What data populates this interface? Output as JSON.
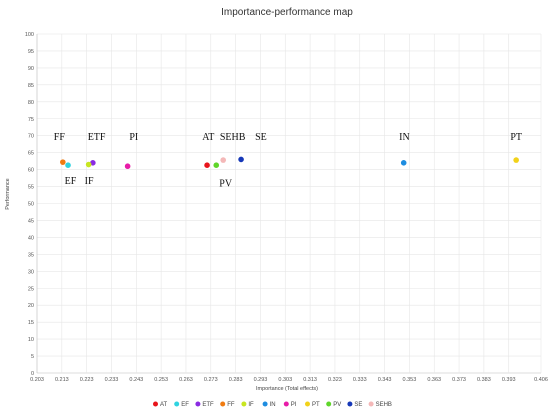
{
  "chart_data": {
    "type": "scatter",
    "title": "Importance-performance map",
    "xlabel": "Importance (Total effects)",
    "ylabel": "Performance",
    "xlim": [
      0.203,
      0.406
    ],
    "ylim": [
      0,
      100
    ],
    "x_ticks": [
      "0.203",
      "0.213",
      "0.223",
      "0.233",
      "0.243",
      "0.253",
      "0.263",
      "0.273",
      "0.283",
      "0.293",
      "0.303",
      "0.313",
      "0.323",
      "0.333",
      "0.343",
      "0.353",
      "0.363",
      "0.373",
      "0.383",
      "0.393",
      "0.406"
    ],
    "y_ticks": [
      "0",
      "5",
      "10",
      "15",
      "20",
      "25",
      "30",
      "35",
      "40",
      "45",
      "50",
      "55",
      "60",
      "65",
      "70",
      "75",
      "80",
      "85",
      "90",
      "95",
      "100"
    ],
    "grid": true,
    "legend_position": "bottom",
    "points": [
      {
        "name": "AT",
        "x": 0.2715,
        "y": 61.3,
        "color": "#e8141b"
      },
      {
        "name": "EF",
        "x": 0.2155,
        "y": 61.3,
        "color": "#2fd3e0"
      },
      {
        "name": "ETF",
        "x": 0.2255,
        "y": 62.0,
        "color": "#8a2be2"
      },
      {
        "name": "FF",
        "x": 0.2134,
        "y": 62.2,
        "color": "#f07c12"
      },
      {
        "name": "IF",
        "x": 0.2238,
        "y": 61.5,
        "color": "#c8e620"
      },
      {
        "name": "IN",
        "x": 0.3507,
        "y": 62.0,
        "color": "#1e8de0"
      },
      {
        "name": "PI",
        "x": 0.2395,
        "y": 61.0,
        "color": "#e81ca8"
      },
      {
        "name": "PT",
        "x": 0.396,
        "y": 62.8,
        "color": "#f2d21a"
      },
      {
        "name": "PV",
        "x": 0.2752,
        "y": 61.3,
        "color": "#5fd62a"
      },
      {
        "name": "SE",
        "x": 0.2852,
        "y": 63.0,
        "color": "#1638b8"
      },
      {
        "name": "SEHB",
        "x": 0.278,
        "y": 62.8,
        "color": "#f4b8b8"
      }
    ],
    "annotations": [
      {
        "text": "FF",
        "x": 0.212,
        "y": 68.8
      },
      {
        "text": "ETF",
        "x": 0.227,
        "y": 68.8
      },
      {
        "text": "PI",
        "x": 0.242,
        "y": 68.8
      },
      {
        "text": "AT",
        "x": 0.272,
        "y": 68.8
      },
      {
        "text": "SEHB",
        "x": 0.2818,
        "y": 68.8
      },
      {
        "text": "SE",
        "x": 0.2932,
        "y": 68.8
      },
      {
        "text": "EF",
        "x": 0.2165,
        "y": 55.8
      },
      {
        "text": "IF",
        "x": 0.224,
        "y": 55.8
      },
      {
        "text": "PV",
        "x": 0.279,
        "y": 55.0
      },
      {
        "text": "IN",
        "x": 0.351,
        "y": 68.8
      },
      {
        "text": "PT",
        "x": 0.396,
        "y": 68.8
      }
    ]
  }
}
